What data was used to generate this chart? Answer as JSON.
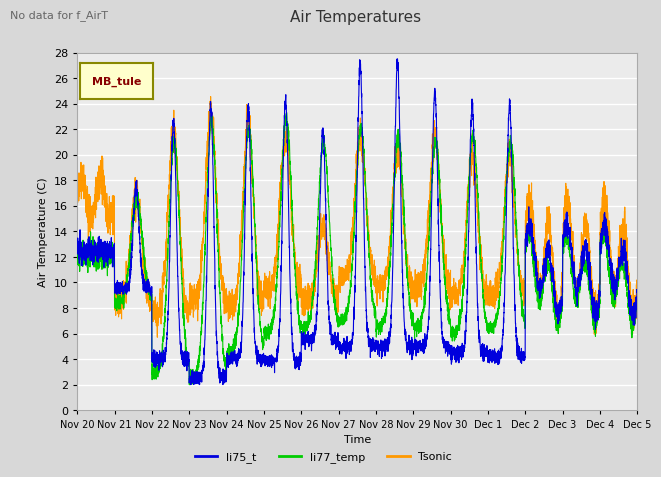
{
  "title": "Air Temperatures",
  "ylabel": "Air Temperature (C)",
  "xlabel": "Time",
  "no_data_text": "No data for f_AirT",
  "mb_tule_label": "MB_tule",
  "ylim": [
    0,
    28
  ],
  "yticks": [
    0,
    2,
    4,
    6,
    8,
    10,
    12,
    14,
    16,
    18,
    20,
    22,
    24,
    26,
    28
  ],
  "series_colors": {
    "li75_t": "#0000dd",
    "li77_temp": "#00cc00",
    "Tsonic": "#ff9900"
  },
  "x_tick_labels": [
    "Nov 20",
    "Nov 21",
    "Nov 22",
    "Nov 23",
    "Nov 24",
    "Nov 25",
    "Nov 26",
    "Nov 27",
    "Nov 28",
    "Nov 29",
    "Nov 30",
    "Dec 1",
    "Dec 2",
    "Dec 3",
    "Dec 4",
    "Dec 5"
  ],
  "bg_color": "#d8d8d8",
  "plot_bg_color": "#ebebeb",
  "grid_color": "#ffffff"
}
